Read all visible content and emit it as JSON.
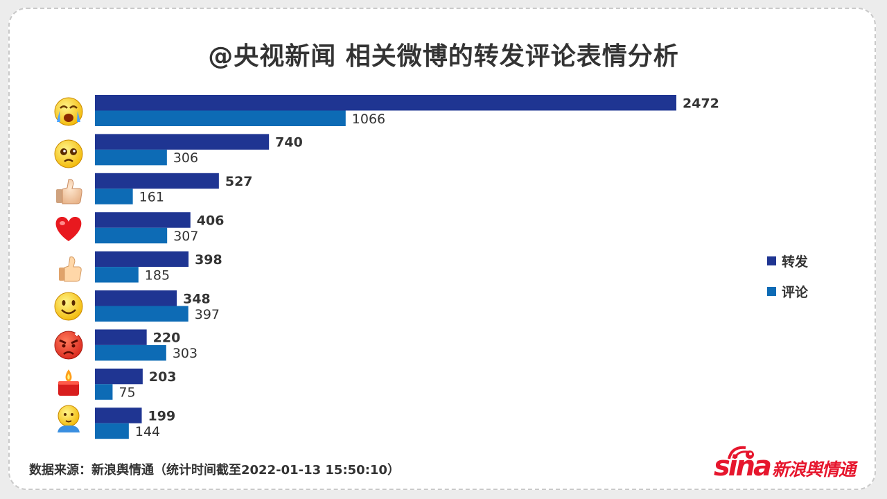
{
  "chart_data": {
    "type": "bar",
    "orientation": "horizontal",
    "title": "@央视新闻 相关微博的转发评论表情分析",
    "categories": [
      "crying-face",
      "pleading-face",
      "thumbs-up-light",
      "red-heart",
      "thumbs-up-yellow",
      "smiling-face",
      "angry-face",
      "candle",
      "hugging-person"
    ],
    "series": [
      {
        "name": "转发",
        "color": "#1f3592",
        "values": [
          2472,
          740,
          527,
          406,
          398,
          348,
          220,
          203,
          199
        ]
      },
      {
        "name": "评论",
        "color": "#0d6bb5",
        "values": [
          1066,
          306,
          161,
          307,
          185,
          397,
          303,
          75,
          144
        ]
      }
    ],
    "legend_position": "right",
    "grid": false
  },
  "source": "数据来源：新浪舆情通（统计时间截至2022-01-13 15:50:10）",
  "logo": {
    "brand": "sina",
    "text": "新浪舆情通"
  }
}
